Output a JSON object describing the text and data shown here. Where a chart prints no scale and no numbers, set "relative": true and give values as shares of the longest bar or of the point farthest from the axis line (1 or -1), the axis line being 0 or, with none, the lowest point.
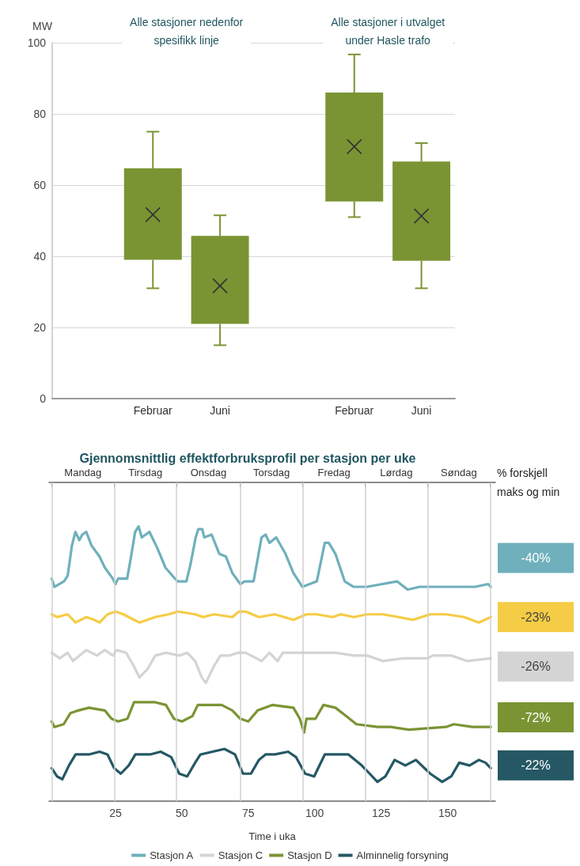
{
  "chart_data": [
    {
      "type": "box",
      "ylabel": "MW",
      "categories": [
        null,
        "Februar",
        "Juni",
        null,
        "Februar",
        "Juni"
      ],
      "color": "#7a9433",
      "ylim": [
        0,
        100
      ],
      "yticks": [
        0,
        20,
        40,
        60,
        80,
        100
      ],
      "grid": "y",
      "annotations": [
        "Alle stasjoner nedenfor\nspesifikk linje",
        "Alle stasjoner i utvalget\nunder Hasle trafo"
      ],
      "boxes": [
        null,
        {
          "low": 31,
          "q1": 39,
          "q3": 64.7,
          "high": 75,
          "mean": 51.7
        },
        {
          "low": 15,
          "q1": 21,
          "q3": 45.7,
          "high": 51.5,
          "mean": 31.7
        },
        null,
        {
          "low": 51,
          "q1": 55.4,
          "q3": 86,
          "high": 96.7,
          "mean": 70.8
        },
        {
          "low": 31,
          "q1": 38.7,
          "q3": 66.6,
          "high": 71.8,
          "mean": 51.3
        }
      ]
    },
    {
      "type": "line",
      "title": "Gjennomsnittlig effektforbruksprofil per stasjon per uke",
      "xlabel": "Time i uka",
      "relative": true,
      "xlim": [
        0,
        168
      ],
      "xticks": [
        25,
        50,
        75,
        100,
        125,
        150
      ],
      "ref_lines": [
        {
          "axis": "x",
          "value": 1,
          "color": "#d0d0d0"
        },
        {
          "axis": "x",
          "value": 24.5,
          "color": "#d0d0d0"
        },
        {
          "axis": "x",
          "value": 48,
          "color": "#d0d0d0"
        },
        {
          "axis": "x",
          "value": 72,
          "color": "#d0d0d0"
        },
        {
          "axis": "x",
          "value": 95.5,
          "color": "#d0d0d0"
        },
        {
          "axis": "x",
          "value": 119,
          "color": "#d0d0d0"
        },
        {
          "axis": "x",
          "value": 142.5,
          "color": "#d0d0d0"
        },
        {
          "axis": "x",
          "value": 166,
          "color": "#d0d0d0"
        }
      ],
      "legend": "bottom",
      "marker": "none",
      "line_style": "solid",
      "grid": false,
      "annotations": [
        "Mandag",
        "Tirsdag",
        "Onsdag",
        "Torsdag",
        "Fredag",
        "Lørdag",
        "Søndag",
        "% forskjell\nmaks og min",
        "-40%",
        "-23%",
        "-26%",
        "-72%",
        "-22%"
      ],
      "series": [
        {
          "name": "Stasjon A",
          "color": "#6fb0bc",
          "x": [
            1,
            2,
            5.6,
            7,
            8.6,
            9.9,
            11.4,
            12.5,
            14,
            16,
            19,
            21,
            24,
            25,
            26,
            29.4,
            30.7,
            32.4,
            33.7,
            34.9,
            37.8,
            40.8,
            43.8,
            48.3,
            51.7,
            53.2,
            55.2,
            56.2,
            57.7,
            58.4,
            61.2,
            64.1,
            66.6,
            69,
            72,
            73.6,
            77,
            78.5,
            80,
            81.5,
            83,
            85.5,
            89,
            92,
            95.4,
            100.8,
            103.8,
            105.3,
            107.8,
            111.3,
            114.7,
            119.7,
            131,
            135,
            139.5,
            149.4,
            160.4,
            165.3,
            166.3
          ],
          "values": [
            0.81,
            0.78,
            0.8,
            0.82,
            0.93,
            0.98,
            0.95,
            0.97,
            0.98,
            0.93,
            0.89,
            0.85,
            0.81,
            0.79,
            0.81,
            0.81,
            0.88,
            0.98,
            1.0,
            0.96,
            0.98,
            0.92,
            0.85,
            0.8,
            0.8,
            0.86,
            0.96,
            0.99,
            0.99,
            0.96,
            0.97,
            0.9,
            0.89,
            0.83,
            0.79,
            0.8,
            0.8,
            0.88,
            0.96,
            0.97,
            0.94,
            0.96,
            0.9,
            0.83,
            0.78,
            0.8,
            0.94,
            0.94,
            0.9,
            0.8,
            0.78,
            0.78,
            0.8,
            0.77,
            0.78,
            0.78,
            0.78,
            0.79,
            0.78
          ]
        },
        {
          "color": "#f5cc45",
          "x": [
            1,
            3,
            7,
            10,
            14,
            17,
            19,
            22,
            25,
            28,
            32,
            34,
            40,
            45,
            48.5,
            55,
            58,
            62,
            69,
            71.5,
            74,
            79,
            85,
            92,
            96.9,
            100.8,
            106.8,
            109.8,
            114.7,
            119.7,
            125.6,
            131.6,
            137,
            143.5,
            149.4,
            156.3,
            161.8,
            166.3
          ],
          "values": [
            0.68,
            0.67,
            0.68,
            0.65,
            0.67,
            0.66,
            0.65,
            0.68,
            0.69,
            0.68,
            0.66,
            0.65,
            0.67,
            0.68,
            0.69,
            0.68,
            0.67,
            0.68,
            0.67,
            0.69,
            0.69,
            0.67,
            0.68,
            0.66,
            0.68,
            0.68,
            0.67,
            0.68,
            0.67,
            0.68,
            0.68,
            0.67,
            0.66,
            0.68,
            0.68,
            0.67,
            0.65,
            0.67
          ]
        },
        {
          "name": "Stasjon C",
          "color": "#d4d4d4",
          "x": [
            1,
            4,
            7,
            9,
            14,
            18,
            21,
            24,
            25.5,
            29,
            32,
            34,
            37,
            40,
            44,
            49,
            52,
            55,
            57.5,
            59,
            62,
            64.5,
            68,
            71,
            74,
            80,
            83,
            86,
            88,
            95,
            101.8,
            107.8,
            114.7,
            119.7,
            125.6,
            133.6,
            142.5,
            144.5,
            151.4,
            157.3,
            166.3
          ],
          "values": [
            0.54,
            0.52,
            0.54,
            0.51,
            0.55,
            0.53,
            0.55,
            0.53,
            0.55,
            0.54,
            0.49,
            0.45,
            0.48,
            0.53,
            0.54,
            0.53,
            0.54,
            0.51,
            0.45,
            0.43,
            0.49,
            0.53,
            0.53,
            0.54,
            0.54,
            0.51,
            0.54,
            0.51,
            0.54,
            0.54,
            0.54,
            0.54,
            0.53,
            0.53,
            0.51,
            0.52,
            0.52,
            0.53,
            0.53,
            0.51,
            0.52
          ]
        },
        {
          "name": "Stasjon D",
          "color": "#7a9433",
          "x": [
            1,
            2,
            5.5,
            8,
            11,
            15,
            21,
            23.5,
            26,
            29.5,
            32,
            40,
            44,
            47,
            50,
            54,
            56,
            65,
            69,
            72,
            75,
            78.5,
            84,
            92,
            94.4,
            96,
            96.9,
            100.3,
            103.3,
            107.8,
            111.8,
            115.7,
            123.6,
            128.6,
            135.5,
            149.4,
            152.4,
            159.3,
            166.3
          ],
          "values": [
            0.29,
            0.27,
            0.28,
            0.32,
            0.33,
            0.34,
            0.33,
            0.3,
            0.29,
            0.3,
            0.36,
            0.36,
            0.35,
            0.3,
            0.29,
            0.31,
            0.35,
            0.35,
            0.33,
            0.3,
            0.29,
            0.33,
            0.35,
            0.34,
            0.3,
            0.25,
            0.3,
            0.3,
            0.35,
            0.34,
            0.31,
            0.28,
            0.27,
            0.27,
            0.26,
            0.27,
            0.28,
            0.27,
            0.27
          ]
        },
        {
          "name": "Alminnelig forsyning",
          "color": "#255864",
          "x": [
            1,
            3,
            5,
            7.5,
            10,
            15,
            19,
            22,
            24.5,
            27,
            30,
            32.5,
            38,
            42,
            46,
            49,
            52,
            55,
            57,
            66,
            70,
            73,
            76,
            79,
            81.5,
            85,
            90,
            93,
            96.4,
            99.8,
            103.8,
            105.8,
            112.7,
            117.7,
            120.7,
            123.6,
            126.6,
            130.1,
            134.1,
            138.1,
            143.5,
            148,
            151.4,
            154.4,
            158.3,
            161.8,
            164.3,
            166.3
          ],
          "values": [
            0.12,
            0.09,
            0.08,
            0.13,
            0.17,
            0.17,
            0.18,
            0.17,
            0.12,
            0.1,
            0.13,
            0.17,
            0.17,
            0.18,
            0.16,
            0.1,
            0.09,
            0.14,
            0.17,
            0.19,
            0.17,
            0.1,
            0.1,
            0.15,
            0.17,
            0.17,
            0.18,
            0.16,
            0.1,
            0.09,
            0.17,
            0.17,
            0.17,
            0.13,
            0.1,
            0.07,
            0.09,
            0.15,
            0.13,
            0.15,
            0.1,
            0.07,
            0.09,
            0.14,
            0.13,
            0.15,
            0.14,
            0.12
          ]
        }
      ]
    }
  ]
}
